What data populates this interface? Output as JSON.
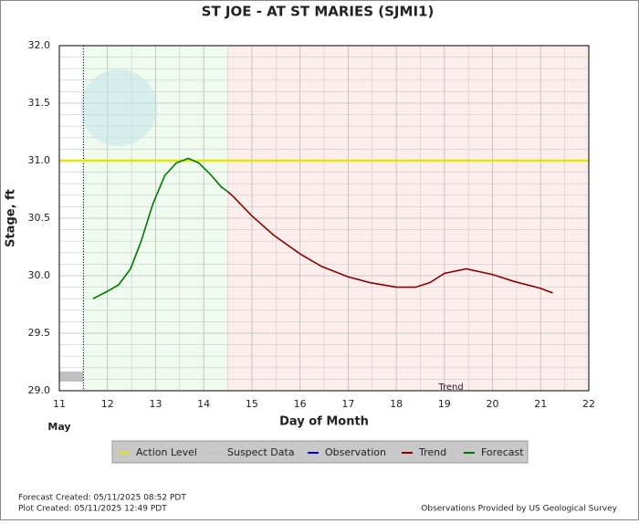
{
  "chart_data": {
    "type": "line",
    "title": "ST JOE - AT ST MARIES  (SJMI1)",
    "x_label": "Day of Month",
    "y_label": "Stage, ft",
    "x_sublabel": "May",
    "trend_label": "Trend",
    "xlim": [
      11,
      22
    ],
    "xticks": [
      11,
      12,
      13,
      14,
      15,
      16,
      17,
      18,
      19,
      20,
      21,
      22
    ],
    "ylim": [
      29,
      32
    ],
    "yticks": [
      {
        "value": 29,
        "label": "29.0"
      },
      {
        "value": 29.5,
        "label": "29.5"
      },
      {
        "value": 30,
        "label": "30.0"
      },
      {
        "value": 30.5,
        "label": "30.5"
      },
      {
        "value": 31,
        "label": "31.0"
      },
      {
        "value": 31.5,
        "label": "31.5"
      },
      {
        "value": 32,
        "label": "32.0"
      }
    ],
    "grid": true,
    "regions": [
      {
        "from": 11.5,
        "to": 14.5,
        "color": "#eefbee"
      },
      {
        "from": 14.5,
        "to": 22,
        "color": "#fdeeee"
      }
    ],
    "now_line": 11.5,
    "action_level": {
      "name": "Action Level",
      "value": 31.0,
      "color": "#e6e600"
    },
    "series": [
      {
        "name": "Suspect Data",
        "color": "#c0c0c0",
        "x": [],
        "values": []
      },
      {
        "name": "Observation",
        "color": "#0000cc",
        "x": [],
        "values": []
      },
      {
        "name": "Trend",
        "color": "#8b0000",
        "x": [
          14.5,
          14.61,
          15.0,
          15.46,
          16.0,
          16.45,
          17.0,
          17.45,
          18.0,
          18.4,
          18.7,
          19.0,
          19.45,
          20.0,
          20.45,
          21.0,
          21.25
        ],
        "values": [
          30.73,
          30.69,
          30.52,
          30.35,
          30.19,
          30.08,
          29.99,
          29.94,
          29.9,
          29.9,
          29.94,
          30.02,
          30.06,
          30.01,
          29.95,
          29.89,
          29.85
        ]
      },
      {
        "name": "Forecast",
        "color": "#007700",
        "x": [
          11.7,
          11.98,
          12.23,
          12.48,
          12.7,
          12.94,
          13.19,
          13.43,
          13.68,
          13.9,
          14.14,
          14.37,
          14.5
        ],
        "values": [
          29.8,
          29.86,
          29.92,
          30.06,
          30.3,
          30.62,
          30.87,
          30.98,
          31.02,
          30.98,
          30.88,
          30.77,
          30.73
        ]
      }
    ],
    "footer_left": [
      "Forecast Created: 05/11/2025 08:52 PDT",
      "Plot Created: 05/11/2025 12:49 PDT"
    ],
    "footer_right": "Observations Provided by US Geological Survey"
  }
}
